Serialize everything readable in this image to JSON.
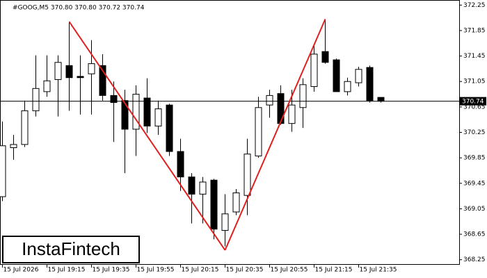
{
  "chart_data": {
    "type": "candlestick",
    "title": "#GOOG,M5  370.80 370.80 370.72 370.74",
    "categories": [
      "15 Jul 2026",
      null,
      null,
      null,
      "15 Jul 19:15",
      null,
      null,
      null,
      "15 Jul 19:35",
      null,
      null,
      null,
      "15 Jul 19:55",
      null,
      null,
      null,
      "15 Jul 20:15",
      null,
      null,
      null,
      "15 Jul 20:35",
      null,
      null,
      null,
      "15 Jul 20:55",
      null,
      null,
      null,
      "15 Jul 21:15",
      null,
      null,
      null,
      "15 Jul 21:35",
      null,
      null
    ],
    "open": [
      369.24,
      370.01,
      370.06,
      370.59,
      370.89,
      371.08,
      371.3,
      371.13,
      371.17,
      371.3,
      370.83,
      370.75,
      370.3,
      370.79,
      370.35,
      370.68,
      369.95,
      369.55,
      369.28,
      369.5,
      368.71,
      369.0,
      369.26,
      369.88,
      370.68,
      370.86,
      370.39,
      370.64,
      370.97,
      371.52,
      371.39,
      370.89,
      371.03,
      371.27,
      370.8
    ],
    "high": [
      370.42,
      370.21,
      370.75,
      371.46,
      371.46,
      371.46,
      371.99,
      371.46,
      371.7,
      371.48,
      371.05,
      370.92,
      370.99,
      371.1,
      370.75,
      370.7,
      370.15,
      369.61,
      369.55,
      369.52,
      369.28,
      369.36,
      370.15,
      370.81,
      370.92,
      370.99,
      370.92,
      371.1,
      371.63,
      372.03,
      371.41,
      371.11,
      371.28,
      371.3,
      370.8
    ],
    "low": [
      369.17,
      369.82,
      370.02,
      370.5,
      370.81,
      370.5,
      370.59,
      370.53,
      370.53,
      370.75,
      370.1,
      369.61,
      369.88,
      370.24,
      370.21,
      369.88,
      369.33,
      368.82,
      368.82,
      368.57,
      368.46,
      368.95,
      368.95,
      369.85,
      370.48,
      370.37,
      370.26,
      370.32,
      370.89,
      371.33,
      370.89,
      370.83,
      370.97,
      370.72,
      370.72
    ],
    "close": [
      370.04,
      370.06,
      370.59,
      370.94,
      371.06,
      371.35,
      371.11,
      371.11,
      371.33,
      370.83,
      370.72,
      370.3,
      370.85,
      370.35,
      370.62,
      369.95,
      369.55,
      369.28,
      369.47,
      368.73,
      368.97,
      369.3,
      369.91,
      370.64,
      370.83,
      370.39,
      370.68,
      371.0,
      371.48,
      371.35,
      370.89,
      371.05,
      371.24,
      370.75,
      370.74
    ],
    "up_color": "#ffffff",
    "down_color": "#000000",
    "current_price": 370.74,
    "pattern_points": [
      {
        "x": 6,
        "y": 371.99
      },
      {
        "x": 20,
        "y": 368.4
      },
      {
        "x": 29,
        "y": 372.03
      }
    ],
    "pattern_color": "#e0201e",
    "ylim": [
      368.17,
      372.33
    ],
    "yticks": [
      {
        "value": 372.25,
        "label": "372.25"
      },
      {
        "value": 371.85,
        "label": "371.85"
      },
      {
        "value": 371.45,
        "label": "371.45"
      },
      {
        "value": 371.05,
        "label": "371.05"
      },
      {
        "value": 370.65,
        "label": "370.65"
      },
      {
        "value": 370.25,
        "label": "370.25"
      },
      369.85,
      369.45,
      369.05,
      368.65,
      368.25
    ],
    "watermark": "InstaFintech"
  }
}
